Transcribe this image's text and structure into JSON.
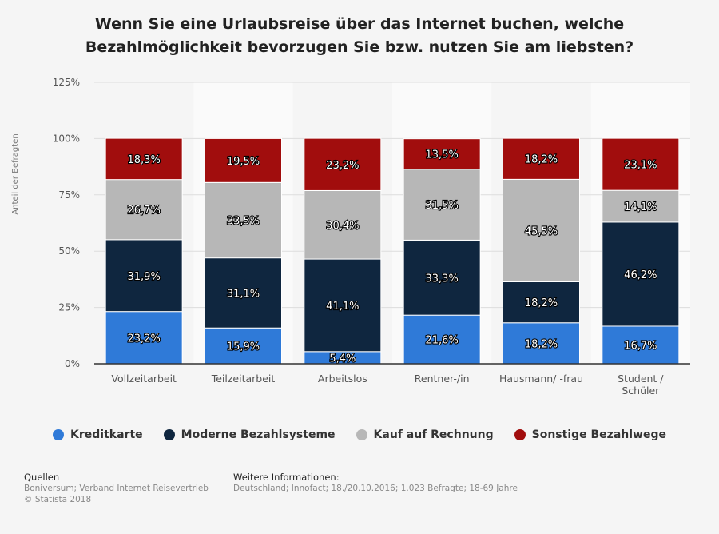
{
  "title": "Wenn Sie eine Urlaubsreise über das Internet buchen, welche Bezahlmöglichkeit bevorzugen Sie bzw. nutzen Sie am liebsten?",
  "colors": {
    "kreditkarte": "#2f7ad8",
    "moderne": "#0f263f",
    "rechnung": "#b7b7b7",
    "sonstige": "#a10d0d",
    "grid": "#dddddd",
    "axis": "#333333"
  },
  "chart_data": {
    "type": "bar",
    "stacked": true,
    "title": "Wenn Sie eine Urlaubsreise über das Internet buchen, welche Bezahlmöglichkeit bevorzugen Sie bzw. nutzen Sie am liebsten?",
    "ylabel": "Anteil der Befragten",
    "xlabel": "",
    "ylim": [
      0,
      125
    ],
    "yticks": [
      "0%",
      "25%",
      "50%",
      "75%",
      "100%",
      "125%"
    ],
    "categories": [
      "Vollzeitarbeit",
      "Teilzeitarbeit",
      "Arbeitslos",
      "Rentner-/in",
      "Hausmann/ -frau",
      "Student / Schüler"
    ],
    "category_lines": [
      [
        "Vollzeitarbeit"
      ],
      [
        "Teilzeitarbeit"
      ],
      [
        "Arbeitslos"
      ],
      [
        "Rentner-/in"
      ],
      [
        "Hausmann/ -frau"
      ],
      [
        "Student /",
        "Schüler"
      ]
    ],
    "series": [
      {
        "name": "Kreditkarte",
        "color": "#2f7ad8",
        "values": [
          23.2,
          15.9,
          5.4,
          21.6,
          18.2,
          16.7
        ],
        "labels": [
          "23,2%",
          "15,9%",
          "5,4%",
          "21,6%",
          "18,2%",
          "16,7%"
        ]
      },
      {
        "name": "Moderne Bezahlsysteme",
        "color": "#0f263f",
        "values": [
          31.9,
          31.1,
          41.1,
          33.3,
          18.2,
          46.2
        ],
        "labels": [
          "31,9%",
          "31,1%",
          "41,1%",
          "33,3%",
          "18,2%",
          "46,2%"
        ]
      },
      {
        "name": "Kauf auf Rechnung",
        "color": "#b7b7b7",
        "values": [
          26.7,
          33.5,
          30.4,
          31.5,
          45.5,
          14.1
        ],
        "labels": [
          "26,7%",
          "33,5%",
          "30,4%",
          "31,5%",
          "45,5%",
          "14,1%"
        ]
      },
      {
        "name": "Sonstige Bezahlwege",
        "color": "#a10d0d",
        "values": [
          18.3,
          19.5,
          23.2,
          13.5,
          18.2,
          23.1
        ],
        "labels": [
          "18,3%",
          "19,5%",
          "23,2%",
          "13,5%",
          "18,2%",
          "23,1%"
        ]
      }
    ],
    "legend_position": "bottom",
    "grid": true
  },
  "footer": {
    "sources_heading": "Quellen",
    "sources_line1": "Boniversum; Verband Internet Reisevertrieb",
    "sources_line2": "© Statista 2018",
    "info_heading": "Weitere Informationen:",
    "info_line1": "Deutschland; Innofact; 18./20.10.2016; 1.023 Befragte; 18-69 Jahre"
  }
}
